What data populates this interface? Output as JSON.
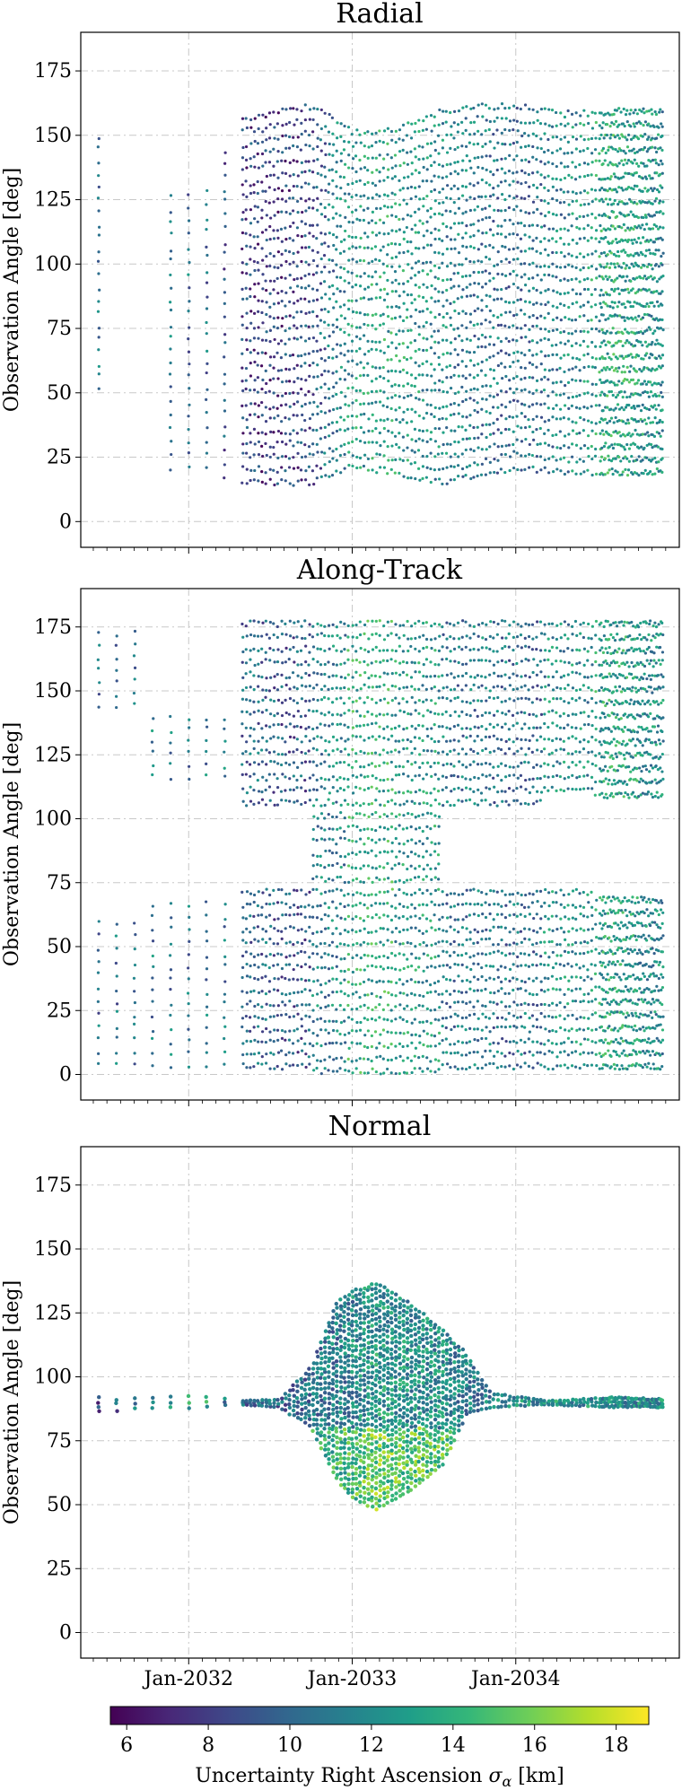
{
  "chart_data": [
    {
      "type": "scatter",
      "title": "Radial",
      "xlabel": "",
      "ylabel": "Observation Angle [deg]",
      "ylim": [
        -10,
        190
      ],
      "yticks": [
        0,
        25,
        50,
        75,
        100,
        125,
        150,
        175
      ],
      "grid": true,
      "envelope": [
        {
          "t": 2031.45,
          "ymin": 50,
          "ymax": 153,
          "c": 10.8
        },
        {
          "t": 2031.6,
          "ymin": 0,
          "ymax": 0,
          "gap": true
        },
        {
          "t": 2032.1,
          "ymin": 20,
          "ymax": 130,
          "c": 10.5
        },
        {
          "t": 2032.3,
          "ymin": 14,
          "ymax": 160,
          "c": 8.5
        },
        {
          "t": 2032.5,
          "ymin": 14,
          "ymax": 162,
          "c": 8.0
        },
        {
          "t": 2032.75,
          "ymin": 14,
          "ymax": 165,
          "c": 9.0
        },
        {
          "t": 2033.0,
          "ymin": 20,
          "ymax": 155,
          "c": 12.5
        },
        {
          "t": 2033.25,
          "ymin": 18,
          "ymax": 156,
          "c": 13.0
        },
        {
          "t": 2033.5,
          "ymin": 14,
          "ymax": 162,
          "c": 12.0
        },
        {
          "t": 2033.75,
          "ymin": 16,
          "ymax": 165,
          "c": 11.0
        },
        {
          "t": 2034.0,
          "ymin": 20,
          "ymax": 165,
          "c": 10.5
        },
        {
          "t": 2034.3,
          "ymin": 18,
          "ymax": 162,
          "c": 11.5
        },
        {
          "t": 2034.6,
          "ymin": 18,
          "ymax": 163,
          "c": 13.5
        },
        {
          "t": 2034.9,
          "ymin": 18,
          "ymax": 163,
          "c": 12.0
        }
      ]
    },
    {
      "type": "scatter",
      "title": "Along-Track",
      "xlabel": "",
      "ylabel": "Observation Angle [deg]",
      "ylim": [
        -10,
        190
      ],
      "yticks": [
        0,
        25,
        50,
        75,
        100,
        125,
        150,
        175
      ],
      "grid": true,
      "envelope": [
        {
          "t": 2031.45,
          "bands": [
            [
              143,
              176
            ],
            [
              2,
              63
            ]
          ],
          "c": 10.5
        },
        {
          "t": 2032.1,
          "bands": [
            [
              115,
              143
            ],
            [
              2,
              70
            ]
          ],
          "c": 11.0
        },
        {
          "t": 2032.35,
          "bands": [
            [
              105,
              180
            ],
            [
              2,
              75
            ]
          ],
          "c": 10.0
        },
        {
          "t": 2032.65,
          "bands": [
            [
              105,
              180
            ],
            [
              2,
              75
            ]
          ],
          "c": 9.5
        },
        {
          "t": 2032.85,
          "bands": [
            [
              0,
              180
            ]
          ],
          "c": 11.5
        },
        {
          "t": 2033.1,
          "bands": [
            [
              0,
              180
            ]
          ],
          "c": 13.5
        },
        {
          "t": 2033.4,
          "bands": [
            [
              0,
              180
            ]
          ],
          "c": 12.5
        },
        {
          "t": 2033.7,
          "bands": [
            [
              105,
              180
            ],
            [
              2,
              75
            ]
          ],
          "c": 11.0
        },
        {
          "t": 2034.0,
          "bands": [
            [
              105,
              180
            ],
            [
              2,
              75
            ]
          ],
          "c": 10.5
        },
        {
          "t": 2034.35,
          "bands": [
            [
              110,
              180
            ],
            [
              2,
              75
            ]
          ],
          "c": 12.0
        },
        {
          "t": 2034.6,
          "bands": [
            [
              108,
              180
            ],
            [
              2,
              72
            ]
          ],
          "c": 13.0
        },
        {
          "t": 2034.9,
          "bands": [
            [
              108,
              180
            ],
            [
              2,
              72
            ]
          ],
          "c": 12.0
        }
      ]
    },
    {
      "type": "scatter",
      "title": "Normal",
      "xlabel": "",
      "ylabel": "Observation Angle [deg]",
      "ylim": [
        -10,
        190
      ],
      "yticks": [
        0,
        25,
        50,
        75,
        100,
        125,
        150,
        175
      ],
      "grid": true,
      "envelope": [
        {
          "t": 2031.45,
          "ymin": 86,
          "ymax": 93,
          "c": 9.0
        },
        {
          "t": 2032.1,
          "ymin": 88,
          "ymax": 94,
          "c": 13.5
        },
        {
          "t": 2032.3,
          "ymin": 89,
          "ymax": 91,
          "c": 10.0
        },
        {
          "t": 2032.55,
          "ymin": 88,
          "ymax": 92,
          "c": 10.0
        },
        {
          "t": 2032.75,
          "ymin": 80,
          "ymax": 105,
          "c": 10.5
        },
        {
          "t": 2032.9,
          "ymin": 60,
          "ymax": 130,
          "c": 11.0
        },
        {
          "t": 2033.0,
          "ymin": 52,
          "ymax": 135,
          "c": 11.5
        },
        {
          "t": 2033.15,
          "ymin": 48,
          "ymax": 138,
          "c": 12.5
        },
        {
          "t": 2033.35,
          "ymin": 55,
          "ymax": 130,
          "c": 12.0
        },
        {
          "t": 2033.55,
          "ymin": 65,
          "ymax": 120,
          "c": 12.0
        },
        {
          "t": 2033.7,
          "ymin": 85,
          "ymax": 110,
          "c": 11.0
        },
        {
          "t": 2033.85,
          "ymin": 88,
          "ymax": 95,
          "c": 11.5
        },
        {
          "t": 2034.2,
          "ymin": 89,
          "ymax": 91,
          "c": 12.5
        },
        {
          "t": 2034.6,
          "ymin": 88,
          "ymax": 93,
          "c": 12.0
        },
        {
          "t": 2034.9,
          "ymin": 88,
          "ymax": 92,
          "c": 12.0
        }
      ]
    }
  ],
  "xaxis": {
    "xlim": [
      2031.34,
      2035.0
    ],
    "ticks": [
      {
        "value": 2032.0,
        "label": "Jan-2032"
      },
      {
        "value": 2033.0,
        "label": "Jan-2033"
      },
      {
        "value": 2034.0,
        "label": "Jan-2034"
      }
    ],
    "minor_ticks_per_year": 12
  },
  "colorbar": {
    "label": "Uncertainty Right Ascension σα [km]",
    "label_main": "Uncertainty Right Ascension ",
    "label_sigma": "σ",
    "label_sub": "α",
    "label_unit": " [km]",
    "range": [
      5.6,
      18.8
    ],
    "ticks": [
      6,
      8,
      10,
      12,
      14,
      16,
      18
    ],
    "colormap": "viridis",
    "colormap_stops": [
      "#440154",
      "#482878",
      "#3e4989",
      "#31688e",
      "#26828e",
      "#1f9e89",
      "#35b779",
      "#6ece58",
      "#b5de2b",
      "#fde725"
    ]
  }
}
